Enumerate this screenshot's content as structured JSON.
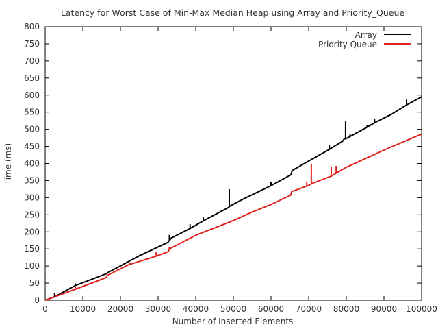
{
  "chart_data": {
    "type": "line",
    "title": "Latency for Worst Case of Min-Max Median Heap using Array and Priority_Queue",
    "xlabel": "Number of Inserted Elements",
    "ylabel": "Time (ms)",
    "xlim": [
      0,
      100000
    ],
    "ylim": [
      0,
      800
    ],
    "x_ticks": [
      0,
      10000,
      20000,
      30000,
      40000,
      50000,
      60000,
      70000,
      80000,
      90000,
      100000
    ],
    "x_tick_labels": [
      "0",
      "10000",
      "20000",
      "30000",
      "40000",
      "50000",
      "60000",
      "70000",
      "80000",
      "90000",
      "100000"
    ],
    "y_ticks": [
      0,
      50,
      100,
      150,
      200,
      250,
      300,
      350,
      400,
      450,
      500,
      550,
      600,
      650,
      700,
      750,
      800
    ],
    "y_tick_labels": [
      "0",
      "50",
      "100",
      "150",
      "200",
      "250",
      "300",
      "350",
      "400",
      "450",
      "500",
      "550",
      "600",
      "650",
      "700",
      "750",
      "800"
    ],
    "grid": false,
    "legend_position": "top-right",
    "series": [
      {
        "name": "Array",
        "color": "#000000",
        "x": [
          0,
          2500,
          8000,
          16400,
          16500,
          25000,
          32600,
          33000,
          33500,
          38500,
          42000,
          48500,
          49000,
          49500,
          53000,
          60000,
          65300,
          65600,
          66000,
          70000,
          75000,
          79000,
          79500,
          80000,
          85000,
          87500,
          92000,
          96000,
          100000
        ],
        "y": [
          0,
          10,
          43,
          78,
          80,
          130,
          169,
          175,
          182,
          210,
          232,
          270,
          274,
          278,
          298,
          335,
          367,
          379,
          382,
          407,
          438,
          465,
          473,
          473,
          503,
          519,
          544,
          571,
          595
        ]
      },
      {
        "name": "Priority Queue",
        "color": "#e0211c",
        "x": [
          0,
          8000,
          16200,
          16400,
          22000,
          29500,
          32700,
          33000,
          40000,
          50000,
          55000,
          60000,
          65200,
          65500,
          70000,
          71000,
          76000,
          77500,
          80000,
          90000,
          100000
        ],
        "y": [
          0,
          32,
          66,
          72,
          103,
          129,
          142,
          150,
          190,
          233,
          258,
          280,
          307,
          318,
          336,
          342,
          363,
          373,
          389,
          439,
          486
        ]
      }
    ],
    "spikes": [
      {
        "series": 0,
        "x": 2500,
        "from": 10,
        "to": 22
      },
      {
        "series": 0,
        "x": 8000,
        "from": 43,
        "to": 49
      },
      {
        "series": 0,
        "x": 33000,
        "from": 175,
        "to": 191
      },
      {
        "series": 0,
        "x": 38500,
        "from": 210,
        "to": 222
      },
      {
        "series": 0,
        "x": 42000,
        "from": 232,
        "to": 244
      },
      {
        "series": 0,
        "x": 48900,
        "from": 273,
        "to": 325
      },
      {
        "series": 0,
        "x": 60000,
        "from": 335,
        "to": 347
      },
      {
        "series": 0,
        "x": 75500,
        "from": 441,
        "to": 455
      },
      {
        "series": 0,
        "x": 79800,
        "from": 470,
        "to": 523
      },
      {
        "series": 0,
        "x": 81000,
        "from": 478,
        "to": 487
      },
      {
        "series": 0,
        "x": 85500,
        "from": 507,
        "to": 513
      },
      {
        "series": 0,
        "x": 87500,
        "from": 519,
        "to": 531
      },
      {
        "series": 0,
        "x": 96000,
        "from": 571,
        "to": 587
      },
      {
        "series": 1,
        "x": 8000,
        "from": 32,
        "to": 42
      },
      {
        "series": 1,
        "x": 22500,
        "from": 105,
        "to": 110
      },
      {
        "series": 1,
        "x": 29500,
        "from": 129,
        "to": 141
      },
      {
        "series": 1,
        "x": 33000,
        "from": 150,
        "to": 155
      },
      {
        "series": 1,
        "x": 69500,
        "from": 334,
        "to": 347
      },
      {
        "series": 1,
        "x": 70700,
        "from": 340,
        "to": 399
      },
      {
        "series": 1,
        "x": 76000,
        "from": 363,
        "to": 390
      },
      {
        "series": 1,
        "x": 77300,
        "from": 372,
        "to": 393
      }
    ]
  }
}
